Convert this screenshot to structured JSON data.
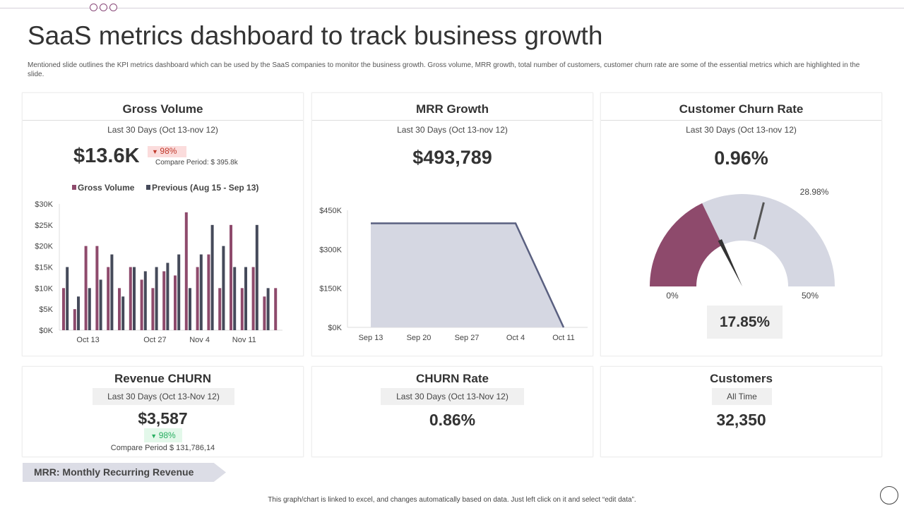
{
  "title": "SaaS metrics dashboard to track business growth",
  "description": "Mentioned slide outlines the KPI metrics dashboard which can be used by the SaaS companies to monitor the business growth. Gross volume, MRR growth, total number of customers, customer churn rate are some of the essential metrics which are highlighted in the slide.",
  "gross": {
    "title": "Gross Volume",
    "period": "Last 30 Days (Oct 13-nov 12)",
    "value": "$13.6K",
    "change": "98%",
    "compare": "Compare Period: $ 395.8k"
  },
  "mrr": {
    "title": "MRR Growth",
    "period": "Last 30 Days (Oct 13-nov 12)",
    "value": "$493,789"
  },
  "churn_rate_card": {
    "title": "Customer Churn Rate",
    "period": "Last 30 Days (Oct 13-nov 12)",
    "value": "0.96%",
    "gauge_value_label": "17.85%",
    "marker_label": "28.98%",
    "min_label": "0%",
    "max_label": "50%"
  },
  "revenue_churn": {
    "title": "Revenue CHURN",
    "period": "Last 30 Days (Oct 13-Nov 12)",
    "value": "$3,587",
    "change": "98%",
    "compare": "Compare Period $ 131,786,14"
  },
  "churn_rate": {
    "title": "CHURN Rate",
    "period": "Last 30 Days (Oct 13-Nov 12)",
    "value": "0.86%"
  },
  "customers": {
    "title": "Customers",
    "period": "All Time",
    "value": "32,350"
  },
  "mrr_note": "MRR: Monthly Recurring Revenue",
  "footer": "This graph/chart is linked to excel, and changes automatically based on data. Just left click on it and select “edit data”.",
  "colors": {
    "purple": "#8e4a6c",
    "dark": "#454a5a",
    "light": "#d5d7e2",
    "red_bg": "#fbdcdc",
    "red": "#c0392b",
    "green_bg": "#e3f8ea",
    "green": "#27ae60"
  },
  "chart_data": [
    {
      "type": "bar",
      "legend_placement": "top",
      "series": [
        {
          "name": "Gross Volume",
          "values": [
            10,
            5,
            20,
            20,
            15,
            10,
            15,
            12,
            10,
            14,
            13,
            28,
            15,
            18,
            10,
            25,
            10,
            15,
            8,
            10
          ]
        },
        {
          "name": "Previous (Aug 15 - Sep 13)",
          "values": [
            15,
            8,
            10,
            12,
            18,
            8,
            15,
            14,
            15,
            16,
            18,
            10,
            18,
            25,
            20,
            15,
            15,
            25,
            10,
            null
          ]
        }
      ],
      "unit": "$K",
      "ylim": [
        0,
        30
      ],
      "y_ticks": [
        "$0K",
        "$5K",
        "$10K",
        "$15K",
        "$20K",
        "$25K",
        "$30K"
      ],
      "x_ticks": [
        {
          "label": "Oct 13",
          "index": 2
        },
        {
          "label": "Oct 27",
          "index": 8
        },
        {
          "label": "Nov 4",
          "index": 12
        },
        {
          "label": "Nov 11",
          "index": 16
        }
      ]
    },
    {
      "type": "area",
      "legend_placement": "top",
      "series": [
        {
          "name": "MRR Growth",
          "values": [
            400,
            400,
            400,
            400,
            0
          ]
        }
      ],
      "categories": [
        "Sep 13",
        "Sep 20",
        "Sep 27",
        "Oct 4",
        "Oct 11"
      ],
      "unit": "$K",
      "ylim": [
        0,
        450
      ],
      "y_ticks": [
        "$0K",
        "$150K",
        "$300K",
        "$450K"
      ]
    },
    {
      "type": "gauge",
      "min": 0,
      "max": 50,
      "value": 17.85,
      "marker": 28.98
    }
  ]
}
